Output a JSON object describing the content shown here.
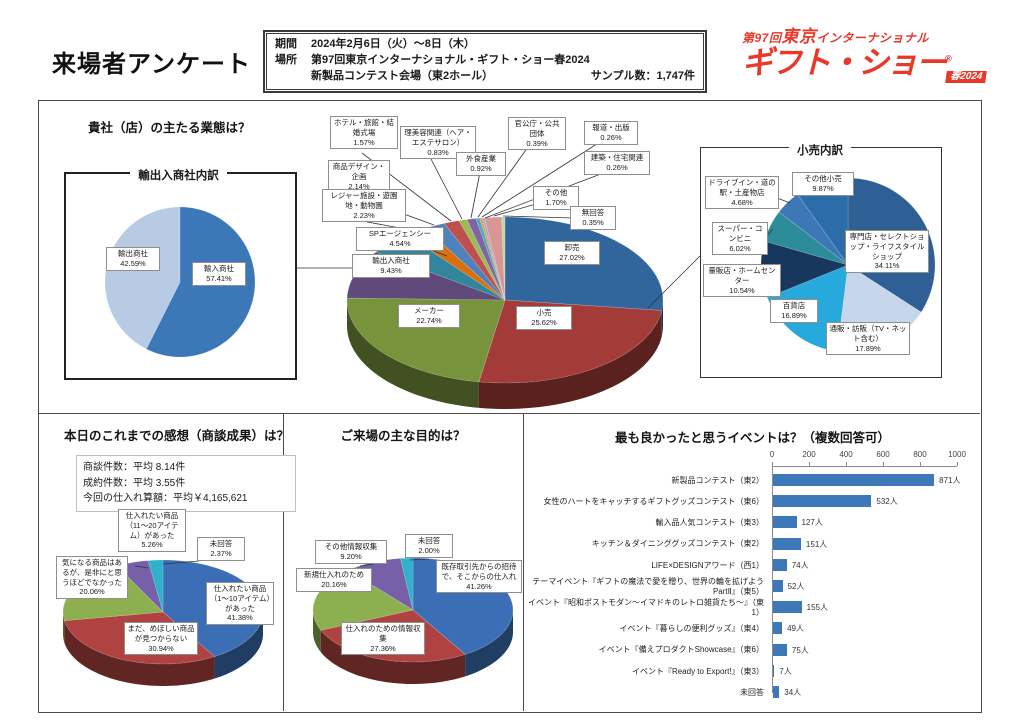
{
  "header": {
    "page_title": "来場者アンケート",
    "info": {
      "period_label": "期間",
      "period_value": "2024年2月6日（火）～8日（木）",
      "place_label": "場所",
      "place_value": "第97回東京インターナショナル・ギフト・ショー春2024",
      "venue_value": "新製品コンテスト会場（東2ホール）",
      "sample_text": "サンプル数：1,747件"
    },
    "logo": {
      "line1_kai": "第97回",
      "line1_tokyo": "東京",
      "line1_intl": "インターナショナル",
      "line2": "ギフト・ショー",
      "reg": "®",
      "badge": "春2024",
      "color": "#E8382A"
    }
  },
  "sections": {
    "business": {
      "question": "貴社（店）の主たる業態は？",
      "import_box_title": "輸出入商社内訳",
      "retail_box_title": "小売内訳"
    },
    "impression": {
      "question": "本日のこれまでの感想（商談成果）は？",
      "stats": [
        "商談件数：平均 8.14件",
        "成約件数：平均 3.55件",
        "今回の仕入れ算額：平均￥4,165,621"
      ]
    },
    "purpose": {
      "question": "ご来場の主な目的は？"
    },
    "events": {
      "question": "最も良かったと思うイベントは？（複数回答可）"
    }
  },
  "chart_data": {
    "business": {
      "type": "pie3d",
      "title": "貴社（店）の主たる業態は？",
      "slices": [
        {
          "label": "卸売",
          "value": 27.02,
          "pct": "27.02%",
          "color": "#31669C"
        },
        {
          "label": "小売",
          "value": 25.62,
          "pct": "25.62%",
          "color": "#A33C39"
        },
        {
          "label": "メーカー",
          "value": 22.74,
          "pct": "22.74%",
          "color": "#77933C"
        },
        {
          "label": "輸出入商社",
          "value": 9.43,
          "pct": "9.43%",
          "color": "#604A7B"
        },
        {
          "label": "SPエージェンシー",
          "value": 4.54,
          "pct": "4.54%",
          "color": "#31859C"
        },
        {
          "label": "レジャー施設・遊園地・動物園",
          "value": 2.23,
          "pct": "2.23%",
          "color": "#D9700B"
        },
        {
          "label": "商品デザイン・企画",
          "value": 2.14,
          "pct": "2.14%",
          "color": "#4F81BD"
        },
        {
          "label": "ホテル・旅館・結婚式場",
          "value": 1.57,
          "pct": "1.57%",
          "color": "#C0504D"
        },
        {
          "label": "理美容関連（ヘア・エステサロン）",
          "value": 0.83,
          "pct": "0.83%",
          "color": "#9BBB59"
        },
        {
          "label": "外食産業",
          "value": 0.92,
          "pct": "0.92%",
          "color": "#8064A2"
        },
        {
          "label": "官公庁・公共団体",
          "value": 0.39,
          "pct": "0.39%",
          "color": "#4BACC6"
        },
        {
          "label": "報道・出版",
          "value": 0.26,
          "pct": "0.26%",
          "color": "#F79646"
        },
        {
          "label": "建築・住宅関連",
          "value": 0.26,
          "pct": "0.26%",
          "color": "#95B3D7"
        },
        {
          "label": "その他",
          "value": 1.7,
          "pct": "1.70%",
          "color": "#D99694"
        },
        {
          "label": "無回答",
          "value": 0.35,
          "pct": "0.35%",
          "color": "#C3D69B"
        }
      ]
    },
    "import_export": {
      "type": "pie",
      "title": "輸出入商社内訳",
      "slices": [
        {
          "label": "輸入商社",
          "value": 57.41,
          "pct": "57.41%",
          "color": "#3C78B8"
        },
        {
          "label": "輸出商社",
          "value": 42.59,
          "pct": "42.59%",
          "color": "#B7CBE4"
        }
      ]
    },
    "retail": {
      "type": "pie",
      "title": "小売内訳",
      "slices": [
        {
          "label": "専門店・セレクトショップ・ライフスタイルショップ",
          "value": 34.11,
          "pct": "34.11%",
          "color": "#2E6096"
        },
        {
          "label": "通販・訪販（TV・ネット含む）",
          "value": 17.89,
          "pct": "17.89%",
          "color": "#C6D6EB"
        },
        {
          "label": "百貨店",
          "value": 16.89,
          "pct": "16.89%",
          "color": "#28A9DE"
        },
        {
          "label": "量販店・ホームセンター",
          "value": 10.54,
          "pct": "10.54%",
          "color": "#17375E"
        },
        {
          "label": "スーパー・コンビニ",
          "value": 6.02,
          "pct": "6.02%",
          "color": "#2D8C99"
        },
        {
          "label": "ドライブイン・道の駅・土産物店",
          "value": 4.68,
          "pct": "4.68%",
          "color": "#3E77B5"
        },
        {
          "label": "その他小売",
          "value": 9.87,
          "pct": "9.87%",
          "color": "#2B6CA9"
        }
      ]
    },
    "impression": {
      "type": "pie3d",
      "title": "本日のこれまでの感想（商談成果）は？",
      "slices": [
        {
          "label": "仕入れたい商品（1～10アイテム）があった",
          "value": 41.38,
          "pct": "41.38%",
          "color": "#3B6EB5"
        },
        {
          "label": "まだ、めぼしい商品が見つからない",
          "value": 30.94,
          "pct": "30.94%",
          "color": "#B04341"
        },
        {
          "label": "気になる商品はあるが、是非にと思うほどでなかった",
          "value": 20.06,
          "pct": "20.06%",
          "color": "#8CB04F"
        },
        {
          "label": "仕入れたい商品（11～20アイテム）があった",
          "value": 5.26,
          "pct": "5.26%",
          "color": "#7660A8"
        },
        {
          "label": "未回答",
          "value": 2.37,
          "pct": "2.37%",
          "color": "#31B0CC"
        }
      ]
    },
    "purpose": {
      "type": "pie3d",
      "title": "ご来場の主な目的は？",
      "slices": [
        {
          "label": "既存取引先からの招待で、そこからの仕入れ",
          "value": 41.26,
          "pct": "41.26%",
          "color": "#3B6EB5"
        },
        {
          "label": "仕入れのための情報収集",
          "value": 27.36,
          "pct": "27.36%",
          "color": "#B04341"
        },
        {
          "label": "新規仕入れのため",
          "value": 20.16,
          "pct": "20.16%",
          "color": "#8CB04F"
        },
        {
          "label": "その他情報収集",
          "value": 9.2,
          "pct": "9.20%",
          "color": "#7660A8"
        },
        {
          "label": "未回答",
          "value": 2.0,
          "pct": "2.00%",
          "color": "#31B0CC"
        }
      ]
    },
    "events": {
      "type": "bar",
      "orientation": "horizontal",
      "title": "最も良かったと思うイベントは？（複数回答可）",
      "categories": [
        "新製品コンテスト（東2）",
        "女性のハートをキャッチするギフトグッズコンテスト（東6）",
        "輸入品人気コンテスト（東3）",
        "キッチン＆ダイニンググッズコンテスト（東2）",
        "LIFE×DESIGNアワード（西1）",
        "テーマイベント『ギフトの魔法で愛を贈り、世界の輪を拡げようPartⅡ』（東5）",
        "イベント『昭和ポストモダン～イマドキのレトロ雑貨たち～』（東1）",
        "イベント『暮らしの便利グッズ』（東4）",
        "イベント『備えプロダクトShowcase』（東6）",
        "イベント『Ready to Export!』（東3）",
        "未回答"
      ],
      "values": [
        871,
        532,
        127,
        151,
        74,
        52,
        155,
        49,
        75,
        7,
        34
      ],
      "value_labels": [
        "871人",
        "532人",
        "127人",
        "151人",
        "74人",
        "52人",
        "155人",
        "49人",
        "75人",
        "7人",
        "34人"
      ],
      "xlim": [
        0,
        1000
      ],
      "ticks": [
        0,
        200,
        400,
        600,
        800,
        1000
      ],
      "tick_labels": [
        "0",
        "200",
        "400",
        "600",
        "800",
        "1000"
      ],
      "bar_color": "#3D79B8"
    }
  }
}
